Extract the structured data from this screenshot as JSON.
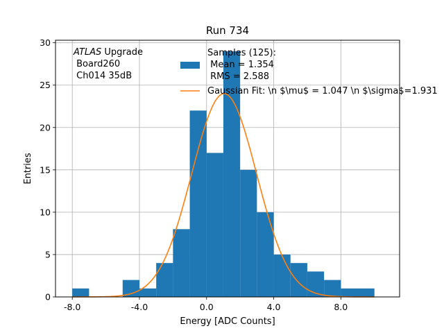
{
  "chart_data": {
    "type": "bar",
    "title": "Run 734",
    "xlabel": "Energy [ADC Counts]",
    "ylabel": "Entries",
    "xlim": [
      -9,
      11.5
    ],
    "ylim": [
      0,
      30.3
    ],
    "xticks": [
      -8,
      -4,
      0,
      4,
      8
    ],
    "xtick_labels": [
      "-8.0",
      "-4.0",
      "0.0",
      "4.0",
      "8.0"
    ],
    "yticks": [
      0,
      5,
      10,
      15,
      20,
      25,
      30
    ],
    "ytick_labels": [
      "0",
      "5",
      "10",
      "15",
      "20",
      "25",
      "30"
    ],
    "grid": true,
    "bins": [
      {
        "lo": -8,
        "hi": -7,
        "count": 1
      },
      {
        "lo": -7,
        "hi": -6,
        "count": 0
      },
      {
        "lo": -6,
        "hi": -5,
        "count": 0
      },
      {
        "lo": -5,
        "hi": -4,
        "count": 2
      },
      {
        "lo": -4,
        "hi": -3,
        "count": 1
      },
      {
        "lo": -3,
        "hi": -2,
        "count": 4
      },
      {
        "lo": -2,
        "hi": -1,
        "count": 8
      },
      {
        "lo": -1,
        "hi": 0,
        "count": 22
      },
      {
        "lo": 0,
        "hi": 1,
        "count": 17
      },
      {
        "lo": 1,
        "hi": 2,
        "count": 29
      },
      {
        "lo": 2,
        "hi": 3,
        "count": 15
      },
      {
        "lo": 3,
        "hi": 4,
        "count": 10
      },
      {
        "lo": 4,
        "hi": 5,
        "count": 5
      },
      {
        "lo": 5,
        "hi": 6,
        "count": 4
      },
      {
        "lo": 6,
        "hi": 7,
        "count": 3
      },
      {
        "lo": 7,
        "hi": 8,
        "count": 2
      },
      {
        "lo": 8,
        "hi": 9,
        "count": 1
      },
      {
        "lo": 9,
        "hi": 10,
        "count": 1
      }
    ],
    "fit": {
      "mu": 1.047,
      "sigma": 1.931,
      "amplitude": 24,
      "x_range": [
        -8,
        10
      ]
    },
    "colors": {
      "bars": "#1f77b4",
      "fit": "#ff7f0e",
      "grid": "#b0b0b0"
    },
    "legend_position": "top-right",
    "legend": [
      {
        "marker": "patch",
        "lines": [
          "Samples (125):",
          " Mean = 1.354",
          " RMS = 2.588"
        ]
      },
      {
        "marker": "line",
        "lines": [
          "Gaussian Fit: \\n $\\mu$ = 1.047 \\n $\\sigma$=1.931"
        ]
      }
    ],
    "annotation": {
      "italic": "ATLAS",
      "rest": " Upgrade",
      "lines": [
        " Board260",
        " Ch014 35dB"
      ]
    }
  }
}
